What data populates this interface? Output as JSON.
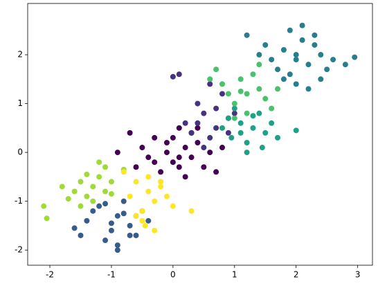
{
  "chart_data": {
    "type": "scatter",
    "xlim": [
      -2.36,
      3.24
    ],
    "ylim": [
      -2.31,
      3.05
    ],
    "xticks": [
      -2,
      -1,
      0,
      1,
      2,
      3
    ],
    "yticks": [
      -2,
      -1,
      0,
      1,
      2
    ],
    "series": [
      {
        "color": "#440154",
        "x": [
          -0.1,
          0.2,
          -0.3,
          0.1,
          0.4,
          -0.5,
          0.0,
          0.3,
          -0.2,
          0.6,
          -0.7,
          0.1,
          -0.4,
          0.5,
          0.2,
          -0.1,
          0.8,
          -0.9,
          0.3,
          -0.3,
          0.0,
          0.7,
          -0.6,
          0.4,
          0.1
        ],
        "y": [
          0.0,
          0.1,
          -0.2,
          -0.3,
          0.2,
          0.1,
          0.3,
          -0.1,
          -0.4,
          0.0,
          0.4,
          0.5,
          -0.1,
          -0.3,
          -0.5,
          0.2,
          0.1,
          0.0,
          0.4,
          0.3,
          -0.2,
          -0.4,
          -0.3,
          0.5,
          -0.1
        ]
      },
      {
        "color": "#46327e",
        "x": [
          0.2,
          0.5,
          0.7,
          0.4,
          0.9,
          0.6,
          0.3,
          0.8,
          1.0,
          0.5,
          0.1,
          0.7,
          0.4,
          0.6,
          0.9,
          0.0
        ],
        "y": [
          0.6,
          0.8,
          0.5,
          1.0,
          0.7,
          0.3,
          0.4,
          1.2,
          0.8,
          0.1,
          1.6,
          0.9,
          0.6,
          1.4,
          0.4,
          1.55
        ]
      },
      {
        "color": "#365c8d",
        "x": [
          -0.9,
          -1.2,
          -0.7,
          -1.0,
          -0.5,
          -1.4,
          -0.8,
          -1.1,
          -0.6,
          -1.5,
          -0.9,
          -0.7,
          -1.3,
          -1.0,
          -0.4,
          -1.6,
          -0.8,
          -1.1,
          -0.6,
          -0.9
        ],
        "y": [
          -1.3,
          -1.1,
          -1.5,
          -1.6,
          -1.2,
          -1.4,
          -1.0,
          -1.8,
          -1.3,
          -1.7,
          -1.9,
          -1.7,
          -1.2,
          -1.45,
          -1.4,
          -1.55,
          -1.25,
          -1.05,
          -1.7,
          -2.0
        ]
      },
      {
        "color": "#277f8e",
        "x": [
          2.0,
          1.8,
          2.2,
          1.9,
          2.4,
          1.6,
          2.1,
          1.7,
          2.5,
          2.3,
          1.5,
          2.0,
          2.6,
          1.9,
          2.2,
          1.4,
          2.8,
          2.1,
          1.8,
          2.4,
          2.95,
          1.2,
          2.3,
          2.0
        ],
        "y": [
          1.9,
          2.1,
          1.8,
          1.6,
          2.0,
          1.9,
          2.3,
          1.7,
          1.7,
          2.2,
          2.2,
          1.4,
          1.9,
          2.5,
          1.3,
          2.0,
          1.8,
          2.6,
          1.5,
          1.5,
          1.95,
          2.4,
          2.4,
          2.0
        ]
      },
      {
        "color": "#1fa187",
        "x": [
          1.1,
          1.3,
          0.9,
          1.5,
          1.2,
          1.0,
          1.6,
          1.4,
          0.8,
          1.7,
          1.2,
          1.1,
          1.45,
          2.0,
          1.3,
          0.95
        ],
        "y": [
          0.6,
          0.5,
          0.7,
          0.4,
          0.2,
          0.9,
          0.6,
          0.8,
          0.5,
          0.3,
          0.0,
          0.4,
          0.1,
          0.45,
          0.75,
          0.3
        ]
      },
      {
        "color": "#4ac16d",
        "x": [
          1.2,
          1.0,
          1.4,
          0.8,
          1.3,
          1.1,
          1.5,
          0.9,
          1.6,
          1.2,
          0.7,
          1.4,
          1.0,
          1.7,
          1.1,
          0.6
        ],
        "y": [
          1.2,
          1.0,
          1.3,
          1.4,
          1.6,
          1.5,
          1.1,
          1.2,
          0.9,
          0.8,
          1.7,
          1.8,
          0.7,
          1.3,
          1.25,
          1.5
        ]
      },
      {
        "color": "#a0da39",
        "x": [
          -1.3,
          -1.5,
          -1.1,
          -1.4,
          -1.2,
          -1.6,
          -1.0,
          -1.3,
          -1.8,
          -1.1,
          -1.5,
          -2.1,
          -1.2,
          -1.4,
          -0.8,
          -1.7,
          -2.05,
          -1.0
        ],
        "y": [
          -0.7,
          -0.6,
          -0.8,
          -0.9,
          -0.5,
          -0.8,
          -0.6,
          -1.0,
          -0.7,
          -0.3,
          -1.1,
          -1.1,
          -0.2,
          -0.45,
          -0.35,
          -0.95,
          -1.35,
          -0.85
        ]
      },
      {
        "color": "#fde725",
        "x": [
          -0.4,
          -0.6,
          -0.3,
          -0.5,
          -0.2,
          -0.7,
          -0.4,
          -0.1,
          -0.5,
          -0.3,
          -0.6,
          0.3,
          -0.8,
          -0.2,
          0.0,
          -0.45
        ],
        "y": [
          -0.8,
          -0.6,
          -1.0,
          -1.2,
          -0.7,
          -0.9,
          -0.5,
          -0.9,
          -1.4,
          -1.6,
          -1.3,
          -1.2,
          -0.4,
          -0.6,
          -1.1,
          -1.5
        ]
      }
    ]
  }
}
